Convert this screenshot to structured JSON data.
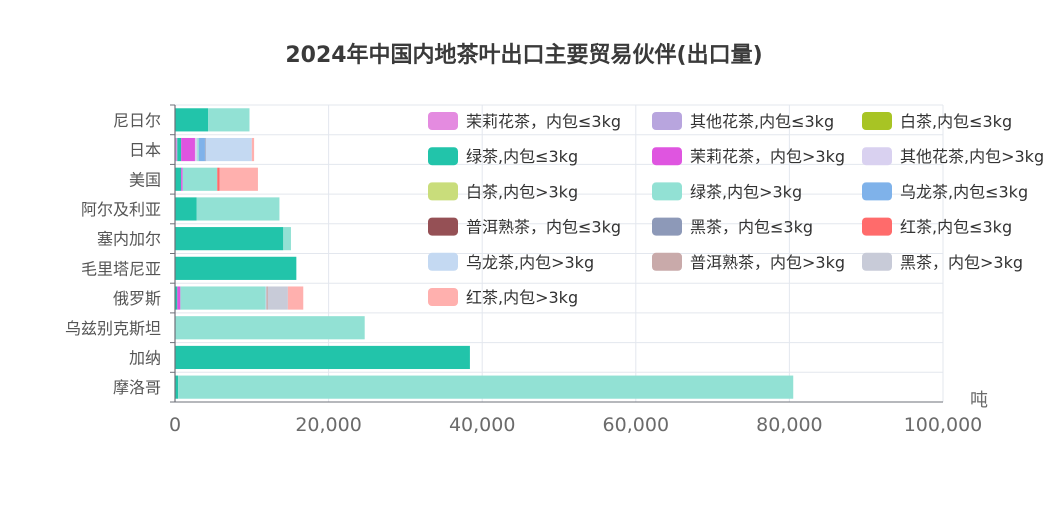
{
  "chart_data": {
    "type": "bar",
    "orientation": "horizontal",
    "stacked": true,
    "title": "2024年中国内地茶叶出口主要贸易伙伴(出口量)",
    "xlabel": "吨",
    "ylabel": "",
    "xlim": [
      0,
      100000
    ],
    "xticks": [
      0,
      20000,
      40000,
      60000,
      80000,
      100000
    ],
    "xtick_labels": [
      "0",
      "20,000",
      "40,000",
      "60,000",
      "80,000",
      "100,000"
    ],
    "grid": true,
    "legend_position": "top-right",
    "categories": [
      "尼日尔",
      "日本",
      "美国",
      "阿尔及利亚",
      "塞内加尔",
      "毛里塔尼亚",
      "俄罗斯",
      "乌兹别克斯坦",
      "加纳",
      "摩洛哥"
    ],
    "series": [
      {
        "name": "茉莉花茶，内包≤3kg",
        "color": "#e48be0",
        "values": [
          0,
          200,
          0,
          0,
          0,
          0,
          0,
          0,
          0,
          0
        ]
      },
      {
        "name": "其他花茶,内包≤3kg",
        "color": "#b8a5de",
        "values": [
          0,
          100,
          0,
          0,
          0,
          0,
          0,
          0,
          0,
          0
        ]
      },
      {
        "name": "白茶,内包≤3kg",
        "color": "#a8c424",
        "values": [
          0,
          0,
          0,
          0,
          0,
          0,
          0,
          0,
          0,
          0
        ]
      },
      {
        "name": "绿茶,内包≤3kg",
        "color": "#22c4aa",
        "values": [
          4300,
          500,
          800,
          2800,
          14100,
          15800,
          300,
          0,
          38400,
          400
        ]
      },
      {
        "name": "茉莉花茶，内包>3kg",
        "color": "#df55e0",
        "values": [
          0,
          1800,
          200,
          0,
          0,
          0,
          400,
          0,
          0,
          0
        ]
      },
      {
        "name": "其他花茶,内包>3kg",
        "color": "#d9d1f0",
        "values": [
          0,
          300,
          0,
          0,
          0,
          0,
          0,
          0,
          0,
          0
        ]
      },
      {
        "name": "白茶,内包>3kg",
        "color": "#c9dd7b",
        "values": [
          0,
          0,
          0,
          0,
          0,
          0,
          0,
          0,
          0,
          0
        ]
      },
      {
        "name": "绿茶,内包>3kg",
        "color": "#92e1d4",
        "values": [
          5400,
          200,
          4500,
          10800,
          1000,
          0,
          11100,
          24700,
          0,
          80100
        ]
      },
      {
        "name": "乌龙茶,内包≤3kg",
        "color": "#7fb2ea",
        "values": [
          0,
          800,
          0,
          0,
          0,
          0,
          0,
          0,
          0,
          0
        ]
      },
      {
        "name": "普洱熟茶，内包≤3kg",
        "color": "#955055",
        "values": [
          0,
          0,
          0,
          0,
          0,
          0,
          0,
          0,
          0,
          0
        ]
      },
      {
        "name": "黑茶，内包≤3kg",
        "color": "#8d99b8",
        "values": [
          0,
          100,
          0,
          0,
          0,
          0,
          0,
          0,
          0,
          0
        ]
      },
      {
        "name": "红茶,内包≤3kg",
        "color": "#ff6b6b",
        "values": [
          0,
          0,
          300,
          0,
          0,
          0,
          0,
          0,
          0,
          0
        ]
      },
      {
        "name": "乌龙茶,内包>3kg",
        "color": "#c4d9f2",
        "values": [
          0,
          6000,
          0,
          0,
          0,
          0,
          100,
          0,
          0,
          0
        ]
      },
      {
        "name": "普洱熟茶，内包>3kg",
        "color": "#c9aaaa",
        "values": [
          0,
          0,
          0,
          0,
          0,
          0,
          200,
          0,
          0,
          0
        ]
      },
      {
        "name": "黑茶，内包>3kg",
        "color": "#c8cbd8",
        "values": [
          0,
          0,
          0,
          0,
          0,
          0,
          2600,
          0,
          0,
          0
        ]
      },
      {
        "name": "红茶,内包>3kg",
        "color": "#ffb0ae",
        "values": [
          0,
          300,
          5000,
          0,
          0,
          0,
          2000,
          0,
          0,
          0
        ]
      }
    ]
  }
}
